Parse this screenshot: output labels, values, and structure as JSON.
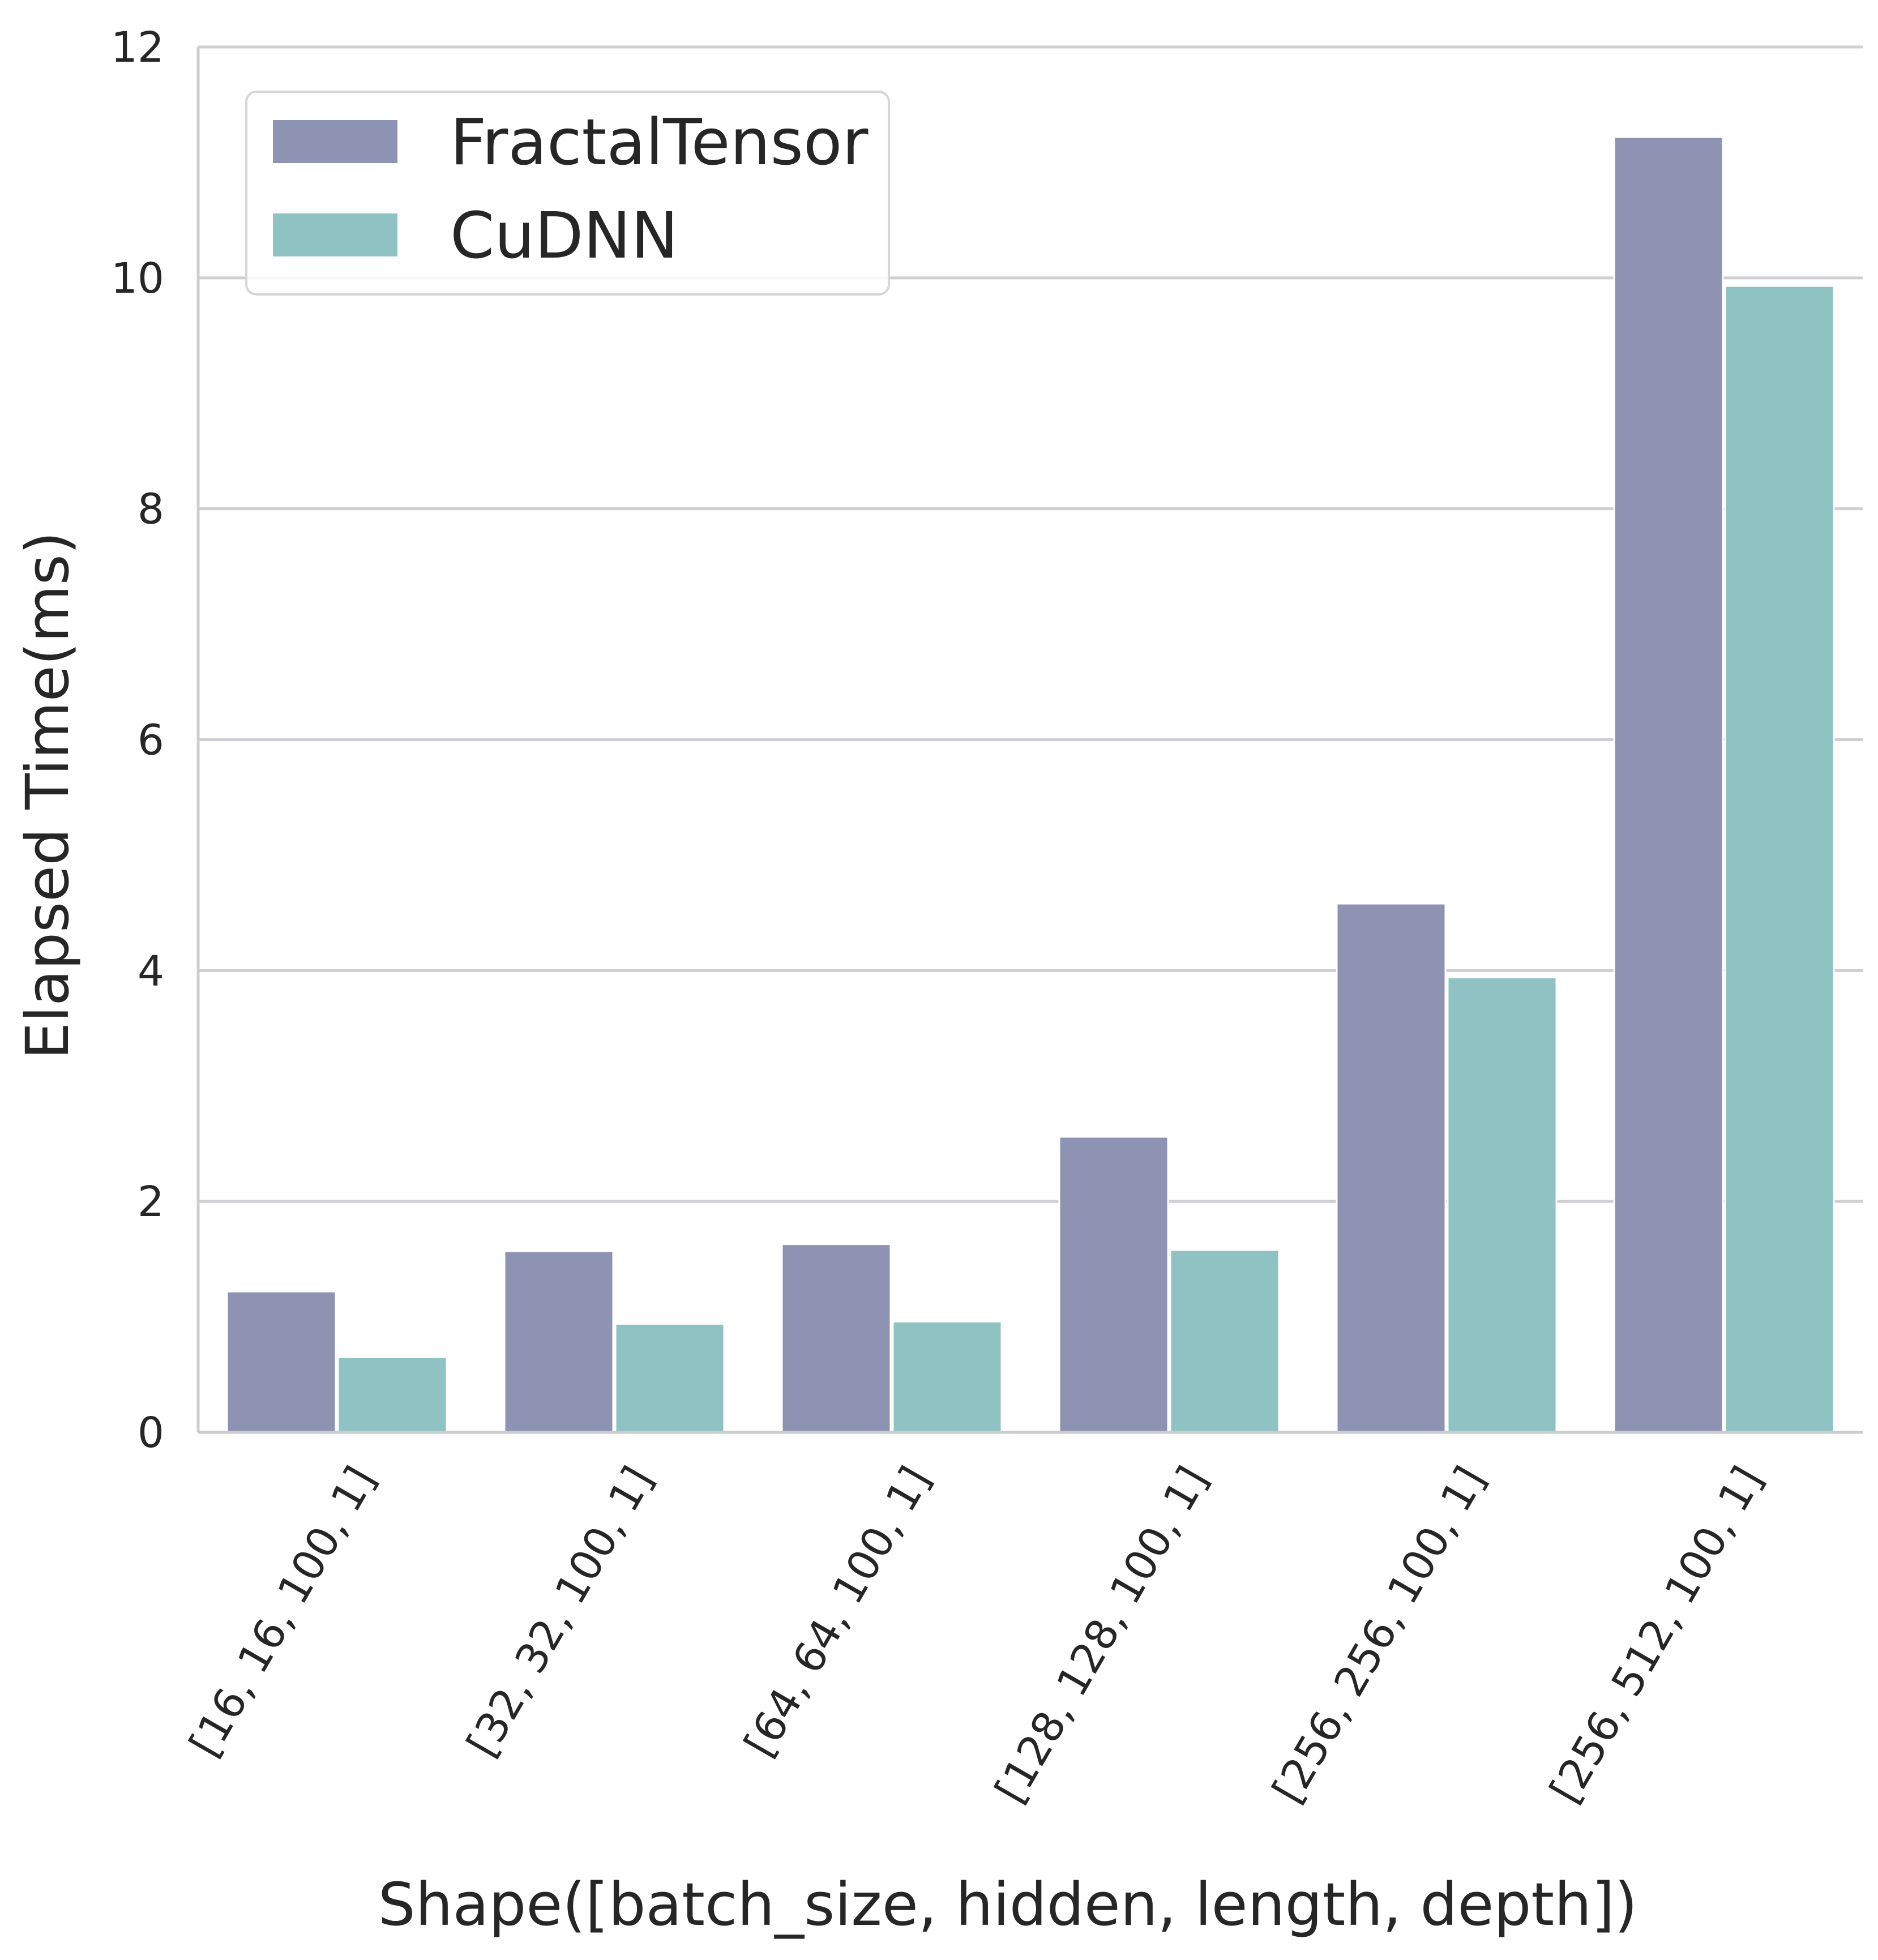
{
  "chart_data": {
    "type": "bar",
    "title": "",
    "xlabel": "Shape([batch_size, hidden, length, depth])",
    "ylabel": "Elapsed Time(ms)",
    "ylim": [
      0,
      12
    ],
    "yticks": [
      0,
      2,
      4,
      6,
      8,
      10,
      12
    ],
    "grid": "horizontal",
    "legend_position": "top-left",
    "categories": [
      "[16, 16, 100, 1]",
      "[32, 32, 100, 1]",
      "[64, 64, 100, 1]",
      "[128, 128, 100, 1]",
      "[256, 256, 100, 1]",
      "[256, 512, 100, 1]"
    ],
    "series": [
      {
        "name": "FractalTensor",
        "color": "#8f93b3",
        "values": [
          1.22,
          1.57,
          1.63,
          2.56,
          4.58,
          11.22
        ]
      },
      {
        "name": "CuDNN",
        "color": "#8fc2c2",
        "values": [
          0.65,
          0.94,
          0.96,
          1.58,
          3.94,
          9.93
        ]
      }
    ]
  }
}
